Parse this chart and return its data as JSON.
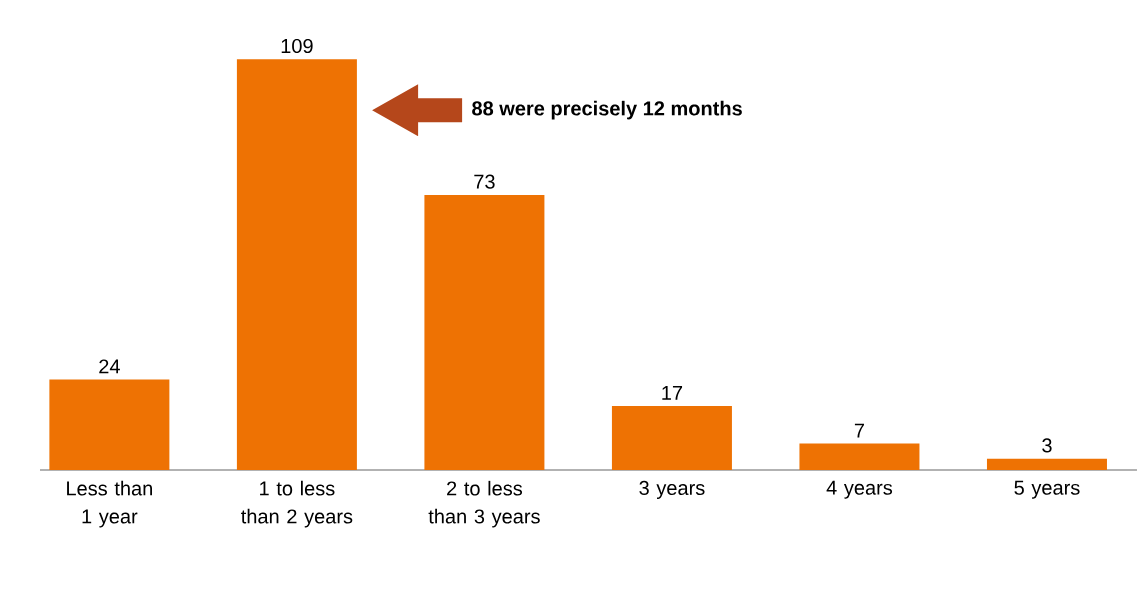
{
  "chart_data": {
    "type": "bar",
    "categories": [
      "Less than 1 year",
      "1 to less than 2 years",
      "2 to less than 3 years",
      "3 years",
      "4 years",
      "5 years"
    ],
    "values": [
      24,
      109,
      73,
      17,
      7,
      3
    ],
    "color": "#ee7203",
    "data_labels": true,
    "annotations": [
      "88 were precisely 12 months"
    ]
  }
}
